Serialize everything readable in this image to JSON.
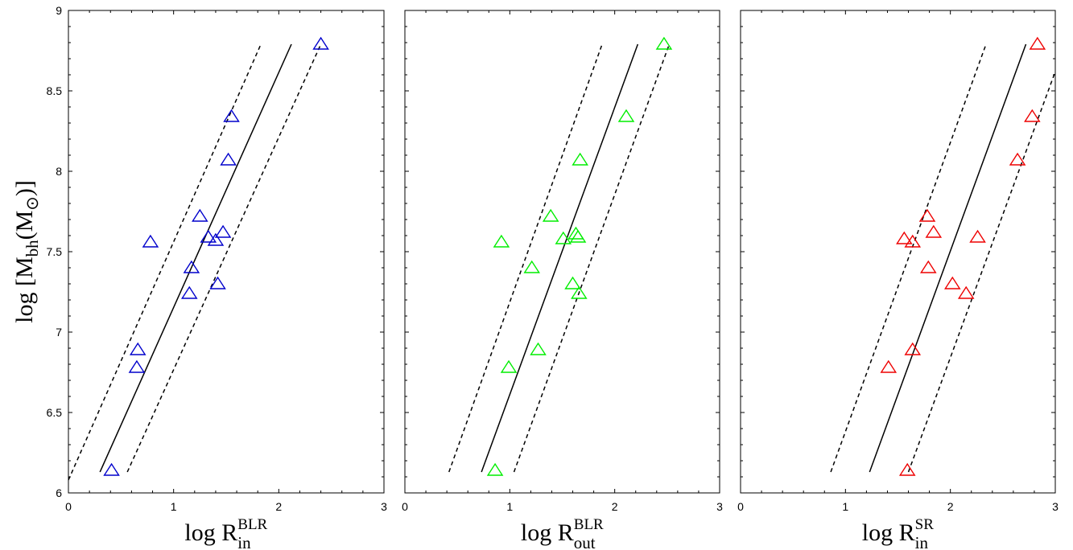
{
  "chart_data": [
    {
      "type": "scatter",
      "xlabel": {
        "base": "log R",
        "sup": "BLR",
        "sub": "in"
      },
      "ylabel": {
        "base": "log [M",
        "sub": "bh",
        "rest": "(M",
        "sym": "⊙",
        "end": ")]"
      },
      "xlim": [
        0,
        3
      ],
      "ylim": [
        6,
        9
      ],
      "xticks": [
        "0",
        "1",
        "2",
        "3"
      ],
      "yticks": [
        "6",
        "6.5",
        "7",
        "7.5",
        "8",
        "8.5",
        "9"
      ],
      "marker": "triangle",
      "color": "#0000cc",
      "points": [
        {
          "x": 0.41,
          "y": 6.14
        },
        {
          "x": 0.65,
          "y": 6.78
        },
        {
          "x": 0.66,
          "y": 6.89
        },
        {
          "x": 0.78,
          "y": 7.56
        },
        {
          "x": 1.15,
          "y": 7.24
        },
        {
          "x": 1.17,
          "y": 7.4
        },
        {
          "x": 1.25,
          "y": 7.72
        },
        {
          "x": 1.33,
          "y": 7.59
        },
        {
          "x": 1.4,
          "y": 7.57
        },
        {
          "x": 1.42,
          "y": 7.3
        },
        {
          "x": 1.47,
          "y": 7.62
        },
        {
          "x": 1.52,
          "y": 8.07
        },
        {
          "x": 1.55,
          "y": 8.34
        },
        {
          "x": 2.4,
          "y": 8.79
        }
      ],
      "fit": [
        [
          0.3,
          6.13
        ],
        [
          2.12,
          8.79
        ]
      ],
      "upper": [
        [
          0.0,
          6.08
        ],
        [
          1.83,
          8.79
        ]
      ],
      "lower": [
        [
          0.56,
          6.13
        ],
        [
          2.4,
          8.79
        ]
      ]
    },
    {
      "type": "scatter",
      "xlabel": {
        "base": "log R",
        "sup": "BLR",
        "sub": "out"
      },
      "xlim": [
        0,
        3
      ],
      "ylim": [
        6,
        9
      ],
      "xticks": [
        "0",
        "1",
        "2",
        "3"
      ],
      "marker": "triangle",
      "color": "#00ee00",
      "points": [
        {
          "x": 0.86,
          "y": 6.14
        },
        {
          "x": 0.99,
          "y": 6.78
        },
        {
          "x": 1.27,
          "y": 6.89
        },
        {
          "x": 0.92,
          "y": 7.56
        },
        {
          "x": 1.21,
          "y": 7.4
        },
        {
          "x": 1.39,
          "y": 7.72
        },
        {
          "x": 1.51,
          "y": 7.58
        },
        {
          "x": 1.6,
          "y": 7.3
        },
        {
          "x": 1.63,
          "y": 7.61
        },
        {
          "x": 1.65,
          "y": 7.59
        },
        {
          "x": 1.66,
          "y": 7.24
        },
        {
          "x": 1.67,
          "y": 8.07
        },
        {
          "x": 2.11,
          "y": 8.34
        },
        {
          "x": 2.47,
          "y": 8.79
        }
      ],
      "fit": [
        [
          0.73,
          6.13
        ],
        [
          2.22,
          8.79
        ]
      ],
      "upper": [
        [
          0.42,
          6.13
        ],
        [
          1.88,
          8.79
        ]
      ],
      "lower": [
        [
          1.04,
          6.13
        ],
        [
          2.52,
          8.79
        ]
      ]
    },
    {
      "type": "scatter",
      "xlabel": {
        "base": "log R",
        "sup": "SR",
        "sub": "in"
      },
      "xlim": [
        0,
        3
      ],
      "ylim": [
        6,
        9
      ],
      "xticks": [
        "0",
        "1",
        "2",
        "3"
      ],
      "marker": "triangle",
      "color": "#ee0000",
      "points": [
        {
          "x": 1.59,
          "y": 6.14
        },
        {
          "x": 1.41,
          "y": 6.78
        },
        {
          "x": 1.64,
          "y": 6.89
        },
        {
          "x": 1.56,
          "y": 7.58
        },
        {
          "x": 1.64,
          "y": 7.56
        },
        {
          "x": 1.78,
          "y": 7.72
        },
        {
          "x": 1.84,
          "y": 7.62
        },
        {
          "x": 1.79,
          "y": 7.4
        },
        {
          "x": 2.02,
          "y": 7.3
        },
        {
          "x": 2.15,
          "y": 7.24
        },
        {
          "x": 2.26,
          "y": 7.59
        },
        {
          "x": 2.64,
          "y": 8.07
        },
        {
          "x": 2.78,
          "y": 8.34
        },
        {
          "x": 2.83,
          "y": 8.79
        }
      ],
      "fit": [
        [
          1.23,
          6.13
        ],
        [
          2.72,
          8.79
        ]
      ],
      "upper": [
        [
          0.86,
          6.13
        ],
        [
          2.34,
          8.79
        ]
      ],
      "lower": [
        [
          1.6,
          6.13
        ],
        [
          3.0,
          8.62
        ]
      ]
    }
  ]
}
